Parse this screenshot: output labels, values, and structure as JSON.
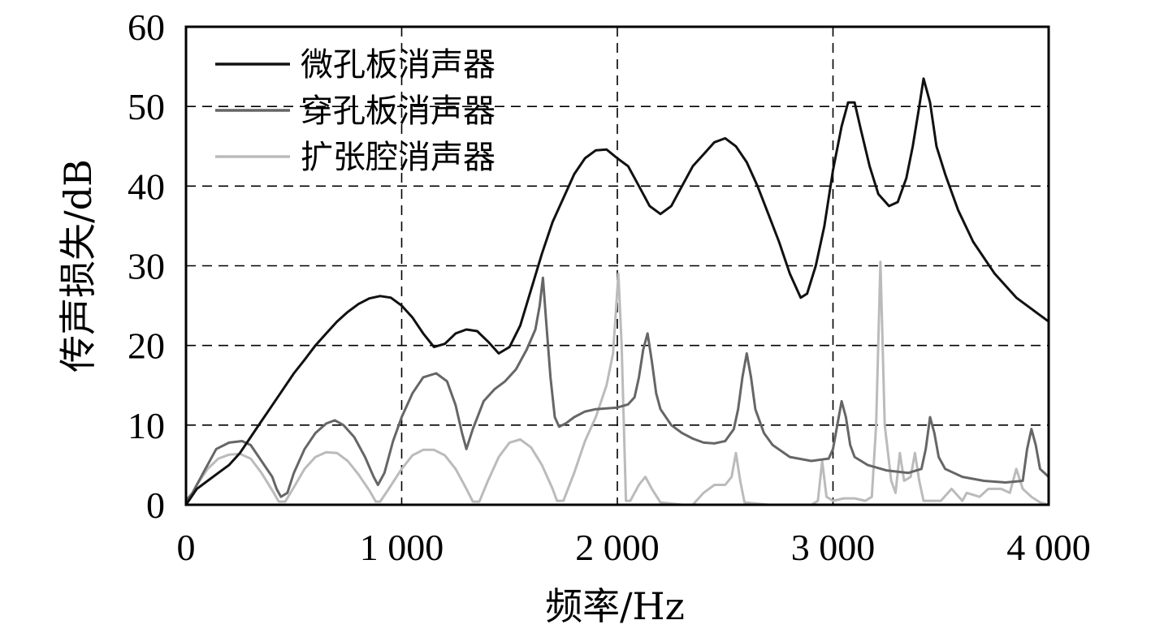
{
  "chart_data": {
    "type": "line",
    "xlabel": "频率/Hz",
    "ylabel": "传声损失/dB",
    "xlim": [
      0,
      4000
    ],
    "ylim": [
      0,
      60
    ],
    "x_ticks": [
      0,
      1000,
      2000,
      3000,
      4000
    ],
    "x_tick_labels": [
      "0",
      "1 000",
      "2 000",
      "3 000",
      "4 000"
    ],
    "y_ticks": [
      0,
      10,
      20,
      30,
      40,
      50,
      60
    ],
    "y_tick_labels": [
      "0",
      "10",
      "20",
      "30",
      "40",
      "50",
      "60"
    ],
    "grid": true,
    "legend_position": "top-left",
    "series": [
      {
        "name": "微孔板消声器",
        "color": "#111111",
        "points": [
          [
            0,
            0
          ],
          [
            50,
            2
          ],
          [
            100,
            3
          ],
          [
            150,
            4
          ],
          [
            200,
            5
          ],
          [
            250,
            6.5
          ],
          [
            300,
            8.5
          ],
          [
            350,
            10.5
          ],
          [
            400,
            12.5
          ],
          [
            450,
            14.5
          ],
          [
            500,
            16.5
          ],
          [
            550,
            18.2
          ],
          [
            600,
            20
          ],
          [
            650,
            21.5
          ],
          [
            700,
            23
          ],
          [
            750,
            24.2
          ],
          [
            800,
            25.2
          ],
          [
            850,
            25.9
          ],
          [
            900,
            26.2
          ],
          [
            950,
            26
          ],
          [
            1000,
            25
          ],
          [
            1050,
            23.5
          ],
          [
            1100,
            21.5
          ],
          [
            1150,
            19.8
          ],
          [
            1200,
            20.2
          ],
          [
            1250,
            21.5
          ],
          [
            1300,
            22
          ],
          [
            1350,
            21.8
          ],
          [
            1400,
            20.5
          ],
          [
            1450,
            19
          ],
          [
            1500,
            19.8
          ],
          [
            1550,
            22.5
          ],
          [
            1600,
            27
          ],
          [
            1650,
            31.5
          ],
          [
            1700,
            35.5
          ],
          [
            1750,
            38.5
          ],
          [
            1800,
            41.5
          ],
          [
            1850,
            43.5
          ],
          [
            1900,
            44.5
          ],
          [
            1950,
            44.6
          ],
          [
            2000,
            43.5
          ],
          [
            2050,
            42.5
          ],
          [
            2100,
            40
          ],
          [
            2150,
            37.5
          ],
          [
            2200,
            36.5
          ],
          [
            2250,
            37.5
          ],
          [
            2300,
            40
          ],
          [
            2350,
            42.5
          ],
          [
            2400,
            44
          ],
          [
            2450,
            45.5
          ],
          [
            2500,
            46
          ],
          [
            2550,
            45
          ],
          [
            2600,
            43
          ],
          [
            2650,
            40
          ],
          [
            2700,
            36.5
          ],
          [
            2750,
            33
          ],
          [
            2800,
            29
          ],
          [
            2850,
            26
          ],
          [
            2880,
            26.5
          ],
          [
            2920,
            30
          ],
          [
            2960,
            35
          ],
          [
            3000,
            42
          ],
          [
            3040,
            47.5
          ],
          [
            3070,
            50.5
          ],
          [
            3100,
            50.5
          ],
          [
            3130,
            47
          ],
          [
            3170,
            42.5
          ],
          [
            3210,
            39
          ],
          [
            3260,
            37.5
          ],
          [
            3300,
            38
          ],
          [
            3340,
            41
          ],
          [
            3370,
            45
          ],
          [
            3400,
            50
          ],
          [
            3420,
            53.5
          ],
          [
            3450,
            50.5
          ],
          [
            3480,
            45
          ],
          [
            3520,
            41.5
          ],
          [
            3580,
            37
          ],
          [
            3650,
            33
          ],
          [
            3750,
            29
          ],
          [
            3850,
            26
          ],
          [
            3950,
            24
          ],
          [
            4000,
            23
          ]
        ]
      },
      {
        "name": "穿孔板消声器",
        "color": "#666666",
        "points": [
          [
            0,
            0.5
          ],
          [
            30,
            1.5
          ],
          [
            80,
            4
          ],
          [
            140,
            7
          ],
          [
            200,
            7.8
          ],
          [
            260,
            8
          ],
          [
            300,
            7.5
          ],
          [
            350,
            5.5
          ],
          [
            400,
            3.5
          ],
          [
            420,
            2
          ],
          [
            440,
            1
          ],
          [
            470,
            1.5
          ],
          [
            500,
            4
          ],
          [
            550,
            7
          ],
          [
            600,
            9
          ],
          [
            650,
            10.2
          ],
          [
            690,
            10.6
          ],
          [
            730,
            10
          ],
          [
            780,
            8.5
          ],
          [
            830,
            6
          ],
          [
            870,
            3.5
          ],
          [
            890,
            2.5
          ],
          [
            920,
            4
          ],
          [
            960,
            8
          ],
          [
            1000,
            11
          ],
          [
            1050,
            14
          ],
          [
            1100,
            16
          ],
          [
            1160,
            16.5
          ],
          [
            1210,
            15.5
          ],
          [
            1250,
            12.5
          ],
          [
            1280,
            9
          ],
          [
            1300,
            7
          ],
          [
            1330,
            9.5
          ],
          [
            1380,
            13
          ],
          [
            1430,
            14.5
          ],
          [
            1480,
            15.5
          ],
          [
            1530,
            17
          ],
          [
            1580,
            19.5
          ],
          [
            1620,
            22
          ],
          [
            1640,
            25
          ],
          [
            1655,
            28.5
          ],
          [
            1670,
            23
          ],
          [
            1690,
            16
          ],
          [
            1710,
            11
          ],
          [
            1730,
            9.8
          ],
          [
            1760,
            10.2
          ],
          [
            1800,
            11
          ],
          [
            1850,
            11.7
          ],
          [
            1900,
            12
          ],
          [
            1950,
            12.1
          ],
          [
            2000,
            12.2
          ],
          [
            2050,
            12.6
          ],
          [
            2080,
            13.5
          ],
          [
            2100,
            16
          ],
          [
            2120,
            19.5
          ],
          [
            2140,
            21.5
          ],
          [
            2160,
            18
          ],
          [
            2180,
            14
          ],
          [
            2200,
            12
          ],
          [
            2250,
            10
          ],
          [
            2300,
            9
          ],
          [
            2350,
            8.3
          ],
          [
            2400,
            7.8
          ],
          [
            2450,
            7.7
          ],
          [
            2500,
            8
          ],
          [
            2540,
            9.5
          ],
          [
            2560,
            12
          ],
          [
            2580,
            16
          ],
          [
            2600,
            19
          ],
          [
            2620,
            16
          ],
          [
            2640,
            12
          ],
          [
            2680,
            9
          ],
          [
            2720,
            7.5
          ],
          [
            2800,
            6
          ],
          [
            2900,
            5.5
          ],
          [
            2980,
            5.8
          ],
          [
            3000,
            7
          ],
          [
            3020,
            10
          ],
          [
            3040,
            13
          ],
          [
            3060,
            11
          ],
          [
            3080,
            7.5
          ],
          [
            3100,
            6
          ],
          [
            3160,
            5
          ],
          [
            3250,
            4.3
          ],
          [
            3350,
            4
          ],
          [
            3410,
            4.5
          ],
          [
            3430,
            7
          ],
          [
            3450,
            11
          ],
          [
            3470,
            9
          ],
          [
            3490,
            6
          ],
          [
            3520,
            4.5
          ],
          [
            3600,
            3.5
          ],
          [
            3700,
            3
          ],
          [
            3800,
            2.8
          ],
          [
            3880,
            3
          ],
          [
            3900,
            7
          ],
          [
            3920,
            9.5
          ],
          [
            3940,
            7.5
          ],
          [
            3960,
            4.5
          ],
          [
            4000,
            3.5
          ]
        ]
      },
      {
        "name": "扩张腔消声器",
        "color": "#bbbbbb",
        "points": [
          [
            0,
            0
          ],
          [
            50,
            2.5
          ],
          [
            100,
            4.5
          ],
          [
            150,
            5.8
          ],
          [
            200,
            6.3
          ],
          [
            250,
            6.4
          ],
          [
            300,
            5.8
          ],
          [
            350,
            4
          ],
          [
            400,
            1.8
          ],
          [
            430,
            0.4
          ],
          [
            460,
            0.4
          ],
          [
            500,
            2.2
          ],
          [
            550,
            4.5
          ],
          [
            600,
            6
          ],
          [
            650,
            6.6
          ],
          [
            700,
            6.5
          ],
          [
            750,
            5.5
          ],
          [
            800,
            3.8
          ],
          [
            850,
            1.8
          ],
          [
            880,
            0.4
          ],
          [
            900,
            0.4
          ],
          [
            940,
            2
          ],
          [
            1000,
            4.5
          ],
          [
            1050,
            6.2
          ],
          [
            1100,
            6.9
          ],
          [
            1150,
            6.9
          ],
          [
            1200,
            6.2
          ],
          [
            1250,
            4.5
          ],
          [
            1300,
            2
          ],
          [
            1330,
            0.4
          ],
          [
            1360,
            0.4
          ],
          [
            1400,
            3
          ],
          [
            1450,
            6
          ],
          [
            1500,
            7.8
          ],
          [
            1550,
            8.2
          ],
          [
            1600,
            7.2
          ],
          [
            1650,
            5
          ],
          [
            1700,
            2
          ],
          [
            1720,
            0.5
          ],
          [
            1750,
            0.5
          ],
          [
            1800,
            4
          ],
          [
            1850,
            8
          ],
          [
            1900,
            11
          ],
          [
            1950,
            15
          ],
          [
            1980,
            19
          ],
          [
            1995,
            25
          ],
          [
            2005,
            29
          ],
          [
            2020,
            20
          ],
          [
            2040,
            0.5
          ],
          [
            2060,
            0.5
          ],
          [
            2100,
            2.5
          ],
          [
            2130,
            3.5
          ],
          [
            2160,
            2
          ],
          [
            2200,
            0.3
          ],
          [
            2300,
            0
          ],
          [
            2350,
            0
          ],
          [
            2400,
            1.5
          ],
          [
            2450,
            2.5
          ],
          [
            2500,
            2.5
          ],
          [
            2530,
            3.5
          ],
          [
            2550,
            6.5
          ],
          [
            2570,
            3
          ],
          [
            2590,
            0.3
          ],
          [
            2700,
            0
          ],
          [
            2900,
            0
          ],
          [
            2930,
            0.5
          ],
          [
            2950,
            5.5
          ],
          [
            2970,
            1
          ],
          [
            3000,
            0.5
          ],
          [
            3050,
            0.8
          ],
          [
            3100,
            0.8
          ],
          [
            3150,
            0.5
          ],
          [
            3180,
            1
          ],
          [
            3200,
            10
          ],
          [
            3220,
            30.5
          ],
          [
            3240,
            10
          ],
          [
            3270,
            3
          ],
          [
            3290,
            1.5
          ],
          [
            3310,
            6.5
          ],
          [
            3330,
            3
          ],
          [
            3360,
            3.5
          ],
          [
            3380,
            6.5
          ],
          [
            3400,
            3
          ],
          [
            3420,
            0.5
          ],
          [
            3500,
            0.5
          ],
          [
            3550,
            2
          ],
          [
            3600,
            0.5
          ],
          [
            3620,
            1.5
          ],
          [
            3680,
            1
          ],
          [
            3720,
            2
          ],
          [
            3780,
            2
          ],
          [
            3820,
            1.5
          ],
          [
            3850,
            4.5
          ],
          [
            3880,
            2
          ],
          [
            3920,
            1
          ],
          [
            3960,
            0.3
          ],
          [
            4000,
            0
          ]
        ]
      }
    ]
  }
}
